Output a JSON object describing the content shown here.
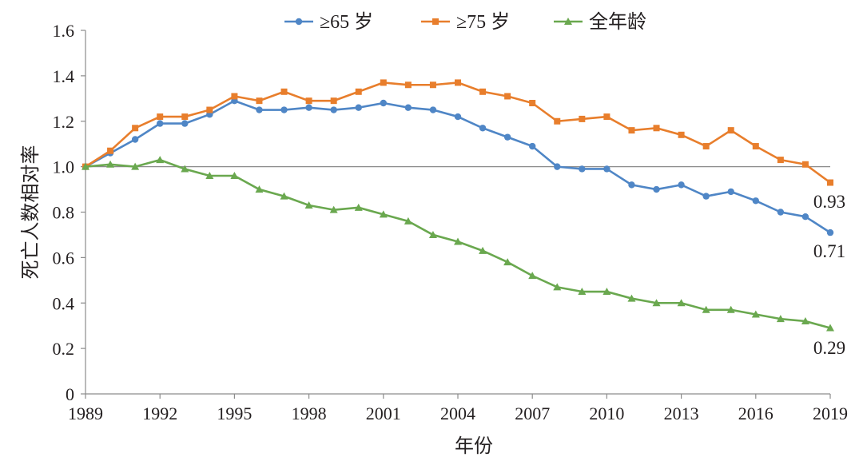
{
  "chart_data": {
    "type": "line",
    "title": "",
    "xlabel": "年份",
    "ylabel": "死亡人数相对率",
    "xlim": [
      1989,
      2019
    ],
    "ylim": [
      0,
      1.6
    ],
    "x_ticks": [
      1989,
      1992,
      1995,
      1998,
      2001,
      2004,
      2007,
      2010,
      2013,
      2016,
      2019
    ],
    "y_ticks": [
      "0",
      "0.2",
      "0.4",
      "0.6",
      "0.8",
      "1.0",
      "1.2",
      "1.4",
      "1.6"
    ],
    "reference_line": 1.0,
    "grid": false,
    "legend_position": "top",
    "x": [
      1989,
      1990,
      1991,
      1992,
      1993,
      1994,
      1995,
      1996,
      1997,
      1998,
      1999,
      2000,
      2001,
      2002,
      2003,
      2004,
      2005,
      2006,
      2007,
      2008,
      2009,
      2010,
      2011,
      2012,
      2013,
      2014,
      2015,
      2016,
      2017,
      2018,
      2019
    ],
    "series": [
      {
        "name": "≥65 岁",
        "color": "#4f86c6",
        "marker": "circle",
        "values": [
          1.0,
          1.06,
          1.12,
          1.19,
          1.19,
          1.23,
          1.29,
          1.25,
          1.25,
          1.26,
          1.25,
          1.26,
          1.28,
          1.26,
          1.25,
          1.22,
          1.17,
          1.13,
          1.09,
          1.0,
          0.99,
          0.99,
          0.92,
          0.9,
          0.92,
          0.87,
          0.89,
          0.85,
          0.8,
          0.78,
          0.71
        ],
        "end_label": "0.71"
      },
      {
        "name": "≥75 岁",
        "color": "#e87e2c",
        "marker": "square",
        "values": [
          1.0,
          1.07,
          1.17,
          1.22,
          1.22,
          1.25,
          1.31,
          1.29,
          1.33,
          1.29,
          1.29,
          1.33,
          1.37,
          1.36,
          1.36,
          1.37,
          1.33,
          1.31,
          1.28,
          1.2,
          1.21,
          1.22,
          1.16,
          1.17,
          1.14,
          1.09,
          1.16,
          1.09,
          1.03,
          1.01,
          0.93
        ],
        "end_label": "0.93"
      },
      {
        "name": "全年龄",
        "color": "#6aa84f",
        "marker": "triangle",
        "values": [
          1.0,
          1.01,
          1.0,
          1.03,
          0.99,
          0.96,
          0.96,
          0.9,
          0.87,
          0.83,
          0.81,
          0.82,
          0.79,
          0.76,
          0.7,
          0.67,
          0.63,
          0.58,
          0.52,
          0.47,
          0.45,
          0.45,
          0.42,
          0.4,
          0.4,
          0.37,
          0.37,
          0.35,
          0.33,
          0.32,
          0.29
        ],
        "end_label": "0.29"
      }
    ]
  }
}
